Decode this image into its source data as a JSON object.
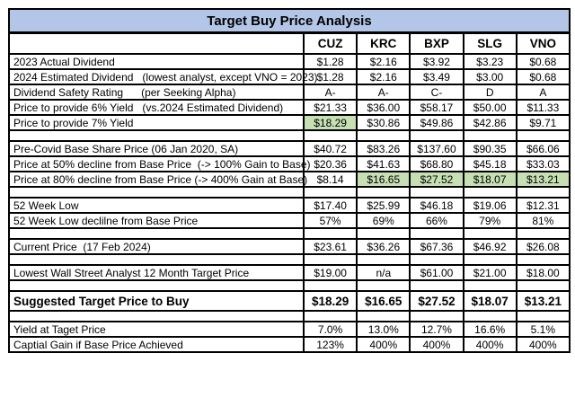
{
  "colors": {
    "title_bg": "#b4c6e7",
    "highlight_green": "#c6e0b4",
    "border": "#000000"
  },
  "chart_data": {
    "type": "table",
    "title": "Target Buy Price Analysis",
    "columns": [
      "CUZ",
      "KRC",
      "BXP",
      "SLG",
      "VNO"
    ],
    "rows": [
      {
        "type": "data",
        "label": "2023 Actual Dividend",
        "values": [
          "$1.28",
          "$2.16",
          "$3.92",
          "$3.23",
          "$0.68"
        ]
      },
      {
        "type": "data",
        "label": "2024 Estimated Dividend   (lowest analyst, except VNO = 2023)",
        "values": [
          "$1.28",
          "$2.16",
          "$3.49",
          "$3.00",
          "$0.68"
        ]
      },
      {
        "type": "data",
        "label": "Dividend Safety Rating      (per Seeking Alpha)",
        "values": [
          "A-",
          "A-",
          "C-",
          "D",
          "A"
        ]
      },
      {
        "type": "data",
        "label": "Price to provide 6% Yield   (vs.2024 Estimated Dividend)",
        "values": [
          "$21.33",
          "$36.00",
          "$58.17",
          "$50.00",
          "$11.33"
        ]
      },
      {
        "type": "data",
        "label": "Price to provide 7% Yield",
        "values": [
          "$18.29",
          "$30.86",
          "$49.86",
          "$42.86",
          "$9.71"
        ],
        "highlight": [
          0
        ]
      },
      {
        "type": "blank"
      },
      {
        "type": "data",
        "label": "Pre-Covid Base Share Price (06 Jan 2020, SA)",
        "values": [
          "$40.72",
          "$83.26",
          "$137.60",
          "$90.35",
          "$66.06"
        ]
      },
      {
        "type": "data",
        "label": "Price at 50% decline from Base Price  (-> 100% Gain to Base)",
        "values": [
          "$20.36",
          "$41.63",
          "$68.80",
          "$45.18",
          "$33.03"
        ]
      },
      {
        "type": "data",
        "label": "Price at 80% decline from Base Price (-> 400% Gain at Base)",
        "values": [
          "$8.14",
          "$16.65",
          "$27.52",
          "$18.07",
          "$13.21"
        ],
        "highlight": [
          1,
          2,
          3,
          4
        ]
      },
      {
        "type": "blank"
      },
      {
        "type": "data",
        "label": "52 Week Low",
        "values": [
          "$17.40",
          "$25.99",
          "$46.18",
          "$19.06",
          "$12.31"
        ]
      },
      {
        "type": "data",
        "label": "52 Week Low declilne from Base Price",
        "values": [
          "57%",
          "69%",
          "66%",
          "79%",
          "81%"
        ]
      },
      {
        "type": "blank"
      },
      {
        "type": "data",
        "label": "Current Price  (17 Feb 2024)",
        "values": [
          "$23.61",
          "$36.26",
          "$67.36",
          "$46.92",
          "$26.08"
        ]
      },
      {
        "type": "blank"
      },
      {
        "type": "data",
        "label": "Lowest Wall Street Analyst 12 Month Target Price",
        "values": [
          "$19.00",
          "n/a",
          "$61.00",
          "$21.00",
          "$18.00"
        ]
      },
      {
        "type": "blank"
      },
      {
        "type": "data",
        "label": "Suggested Target Price to Buy",
        "values": [
          "$18.29",
          "$16.65",
          "$27.52",
          "$18.07",
          "$13.21"
        ],
        "bold": true
      },
      {
        "type": "blank"
      },
      {
        "type": "data",
        "label": "Yield at Taget Price",
        "values": [
          "7.0%",
          "13.0%",
          "12.7%",
          "16.6%",
          "5.1%"
        ]
      },
      {
        "type": "data",
        "label": "Captial Gain if Base Price Achieved",
        "values": [
          "123%",
          "400%",
          "400%",
          "400%",
          "400%"
        ]
      }
    ]
  }
}
